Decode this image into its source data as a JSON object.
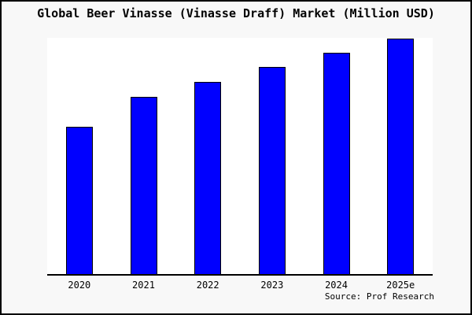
{
  "figure": {
    "background": "#f8f8f8",
    "border_color": "#000000",
    "plot_background": "#ffffff"
  },
  "chart_data": {
    "type": "bar",
    "title": "Global Beer Vinasse (Vinasse Draff) Market (Million USD)",
    "categories": [
      "2020",
      "2021",
      "2022",
      "2023",
      "2024",
      "2025e"
    ],
    "values": [
      62.5,
      75,
      81.5,
      88,
      94,
      100
    ],
    "value_note": "y-axis has no tick labels or gridlines; values are relative estimates from bar heights with 2025e = 100",
    "xlabel": "",
    "ylabel": "",
    "ylim": [
      0,
      100
    ],
    "grid": false,
    "legend": false,
    "bar_color": "#0000ff",
    "bar_border_color": "#000000",
    "source_label": "Source: Prof Research"
  }
}
